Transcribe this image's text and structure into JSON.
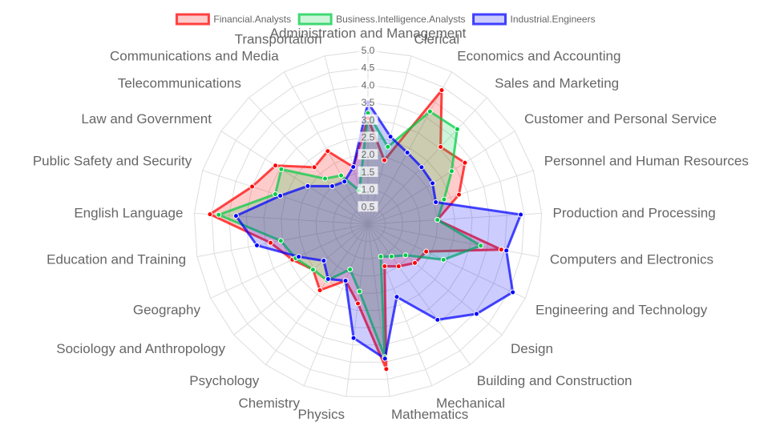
{
  "chart_data": {
    "type": "radar",
    "title": "",
    "rlim": [
      0,
      5
    ],
    "ticks": [
      "0.5",
      "1.0",
      "1.5",
      "2.0",
      "2.5",
      "3.0",
      "3.5",
      "4.0",
      "4.5",
      "5.0"
    ],
    "legend_position": "top",
    "grid": true,
    "categories": [
      "Administration and Management",
      "Clerical",
      "Economics and Accounting",
      "Sales and Marketing",
      "Customer and Personal Service",
      "Personnel and Human Resources",
      "Production and Processing",
      "Computers and Electronics",
      "Engineering and Technology",
      "Design",
      "Building and Construction",
      "Mechanical",
      "Mathematics",
      "Physics",
      "Chemistry",
      "Psychology",
      "Sociology and Anthropology",
      "Geography",
      "Education and Training",
      "English Language",
      "Public Safety and Security",
      "Law and Government",
      "Telecommunications",
      "Communications and Media",
      "Transportation"
    ],
    "series": [
      {
        "name": "Financial.Analysts",
        "color": "#ff0000",
        "values": [
          3.05,
          1.9,
          4.4,
          3.05,
          3.3,
          2.75,
          2.0,
          3.9,
          1.85,
          1.75,
          1.5,
          1.3,
          4.2,
          2.3,
          1.75,
          2.35,
          2.05,
          2.4,
          2.85,
          4.55,
          3.5,
          3.15,
          2.25,
          2.4,
          1.7
        ]
      },
      {
        "name": "Business.Intelligence.Analysts",
        "color": "#00cc44",
        "values": [
          3.2,
          2.3,
          3.7,
          3.75,
          2.85,
          2.3,
          2.0,
          3.3,
          2.4,
          1.4,
          1.15,
          1.0,
          3.85,
          1.95,
          1.4,
          2.0,
          2.05,
          2.3,
          2.55,
          4.3,
          2.8,
          2.95,
          1.8,
          1.6,
          1.0
        ]
      },
      {
        "name": "Industrial.Engineers",
        "color": "#0000ff",
        "values": [
          3.5,
          2.6,
          2.35,
          2.25,
          2.2,
          2.05,
          4.4,
          4.05,
          4.6,
          4.05,
          3.4,
          2.25,
          3.9,
          3.3,
          1.75,
          1.95,
          1.65,
          2.2,
          3.25,
          3.8,
          2.65,
          2.05,
          1.5,
          1.4,
          1.7
        ]
      }
    ]
  }
}
